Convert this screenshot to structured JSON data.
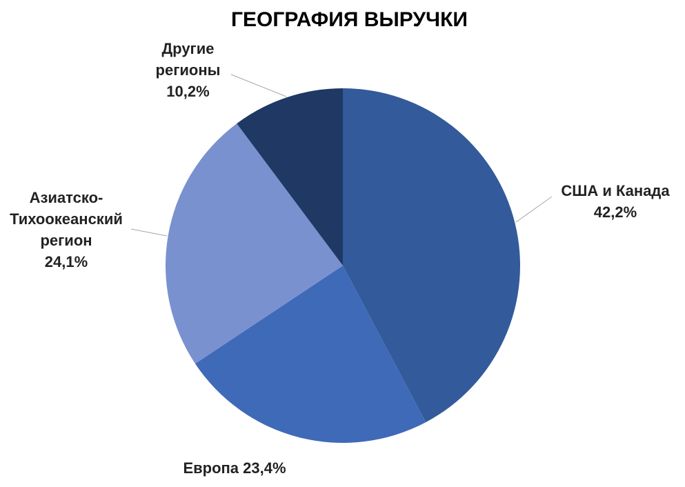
{
  "chart_data": {
    "type": "pie",
    "title": "ГЕОГРАФИЯ ВЫРУЧКИ",
    "categories": [
      "США и Канада",
      "Европа",
      "Азиатско-Тихоокеанский регион",
      "Другие регионы"
    ],
    "values": [
      42.2,
      23.4,
      24.1,
      10.2
    ],
    "value_labels": [
      "42,2%",
      "23,4%",
      "24,1%",
      "10,2%"
    ],
    "colors": [
      "#335a9a",
      "#3e6ab8",
      "#7a91d0",
      "#203864"
    ]
  }
}
